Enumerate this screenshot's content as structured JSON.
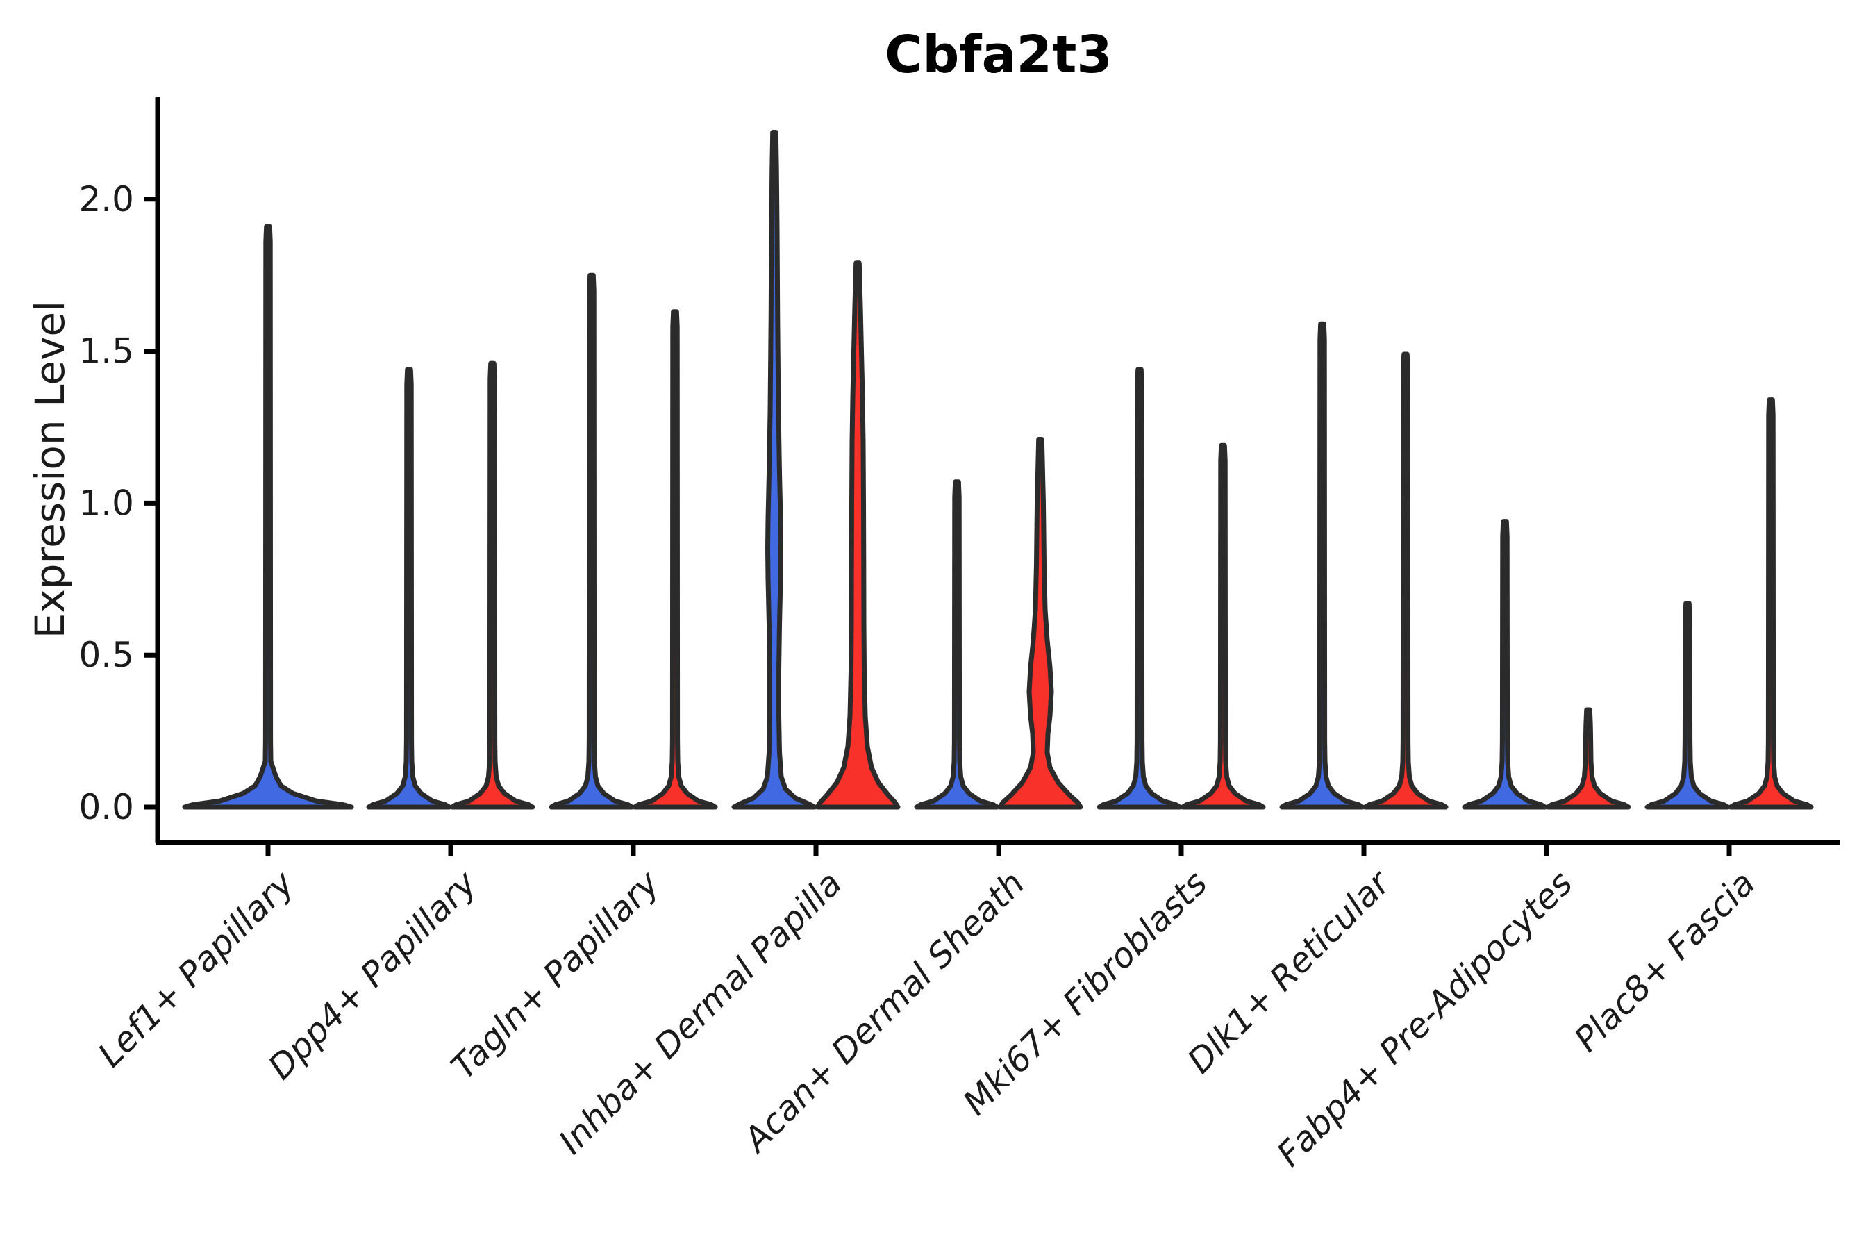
{
  "chart_data": {
    "type": "violin",
    "title": "Cbfa2t3",
    "ylabel": "Expression Level",
    "xlabel": "",
    "yticks": [
      "0.0",
      "0.5",
      "1.0",
      "1.5",
      "2.0"
    ],
    "ytick_values": [
      0.0,
      0.5,
      1.0,
      1.5,
      2.0
    ],
    "ylim": [
      -0.117,
      2.336
    ],
    "grid": false,
    "legend": null,
    "colors": {
      "left_condition_fill": "#4169E1",
      "right_condition_fill": "#F8312A",
      "violin_edge": "#2B2B2B",
      "axis": "#000000",
      "text": "#1A1A1A"
    },
    "categories": [
      "Lef1+ Papillary",
      "Dpp4+ Papillary",
      "Tagln+ Papillary",
      "Inhba+ Dermal Papilla",
      "Acan+ Dermal Sheath",
      "Mki67+ Fibroblasts",
      "Dlk1+ Reticular",
      "Fabp4+ Pre-Adipocytes",
      "Plac8+ Fascia"
    ],
    "groups": [
      {
        "category": "Lef1+ Papillary",
        "violins": [
          {
            "pos": "center",
            "kind": "spike",
            "max": 1.91,
            "base_halfwidth": 120,
            "fill": "#4169E1"
          }
        ]
      },
      {
        "category": "Dpp4+ Papillary",
        "violins": [
          {
            "pos": "left",
            "kind": "spike",
            "max": 1.44,
            "fill": "#4169E1"
          },
          {
            "pos": "right",
            "kind": "spike",
            "max": 1.46,
            "fill": "#F8312A"
          }
        ]
      },
      {
        "category": "Tagln+ Papillary",
        "violins": [
          {
            "pos": "left",
            "kind": "spike",
            "max": 1.75,
            "fill": "#4169E1"
          },
          {
            "pos": "right",
            "kind": "spike",
            "max": 1.63,
            "fill": "#F8312A"
          }
        ]
      },
      {
        "category": "Inhba+ Dermal Papilla",
        "violins": [
          {
            "pos": "left",
            "kind": "shaped",
            "max": 2.22,
            "fill": "#4169E1",
            "profile": [
              [
                0,
                58
              ],
              [
                0.01,
                50
              ],
              [
                0.03,
                30
              ],
              [
                0.06,
                16
              ],
              [
                0.1,
                10
              ],
              [
                0.18,
                7.5
              ],
              [
                0.3,
                6.5
              ],
              [
                0.45,
                6.5
              ],
              [
                0.6,
                7.5
              ],
              [
                0.75,
                9.0
              ],
              [
                0.85,
                9.5
              ],
              [
                0.95,
                9.0
              ],
              [
                1.1,
                7.5
              ],
              [
                1.3,
                6.0
              ],
              [
                1.6,
                4.8
              ],
              [
                1.9,
                4.0
              ],
              [
                2.1,
                3.2
              ],
              [
                2.22,
                2.3
              ]
            ]
          },
          {
            "pos": "right",
            "kind": "shaped",
            "max": 1.79,
            "fill": "#F8312A",
            "profile": [
              [
                0,
                58
              ],
              [
                0.015,
                54
              ],
              [
                0.04,
                44
              ],
              [
                0.08,
                30
              ],
              [
                0.13,
                20
              ],
              [
                0.2,
                14
              ],
              [
                0.3,
                11
              ],
              [
                0.45,
                9.5
              ],
              [
                0.6,
                9.0
              ],
              [
                0.8,
                8.8
              ],
              [
                1.0,
                8.5
              ],
              [
                1.2,
                8.0
              ],
              [
                1.35,
                7.0
              ],
              [
                1.5,
                5.5
              ],
              [
                1.65,
                4.0
              ],
              [
                1.79,
                2.3
              ]
            ]
          }
        ]
      },
      {
        "category": "Acan+ Dermal Sheath",
        "violins": [
          {
            "pos": "left",
            "kind": "spike",
            "max": 1.07,
            "fill": "#4169E1"
          },
          {
            "pos": "right",
            "kind": "shaped",
            "max": 1.21,
            "fill": "#F8312A",
            "profile": [
              [
                0,
                58
              ],
              [
                0.015,
                54
              ],
              [
                0.04,
                42
              ],
              [
                0.08,
                26
              ],
              [
                0.13,
                14
              ],
              [
                0.18,
                10
              ],
              [
                0.24,
                11
              ],
              [
                0.3,
                14
              ],
              [
                0.38,
                16
              ],
              [
                0.46,
                14
              ],
              [
                0.55,
                10
              ],
              [
                0.65,
                7.0
              ],
              [
                0.8,
                5.5
              ],
              [
                1.0,
                4.5
              ],
              [
                1.21,
                2.3
              ]
            ]
          }
        ]
      },
      {
        "category": "Mki67+ Fibroblasts",
        "violins": [
          {
            "pos": "left",
            "kind": "spike",
            "max": 1.44,
            "fill": "#4169E1"
          },
          {
            "pos": "right",
            "kind": "spike",
            "max": 1.19,
            "fill": "#F8312A"
          }
        ]
      },
      {
        "category": "Dlk1+ Reticular",
        "violins": [
          {
            "pos": "left",
            "kind": "spike",
            "max": 1.59,
            "fill": "#4169E1"
          },
          {
            "pos": "right",
            "kind": "spike",
            "max": 1.49,
            "fill": "#F8312A"
          }
        ]
      },
      {
        "category": "Fabp4+ Pre-Adipocytes",
        "violins": [
          {
            "pos": "left",
            "kind": "spike",
            "max": 0.94,
            "fill": "#4169E1"
          },
          {
            "pos": "right",
            "kind": "spike",
            "max": 0.32,
            "fill": "#F8312A"
          }
        ]
      },
      {
        "category": "Plac8+ Fascia",
        "violins": [
          {
            "pos": "left",
            "kind": "spike",
            "max": 0.67,
            "fill": "#4169E1"
          },
          {
            "pos": "right",
            "kind": "spike",
            "max": 1.34,
            "fill": "#F8312A"
          }
        ]
      }
    ]
  }
}
